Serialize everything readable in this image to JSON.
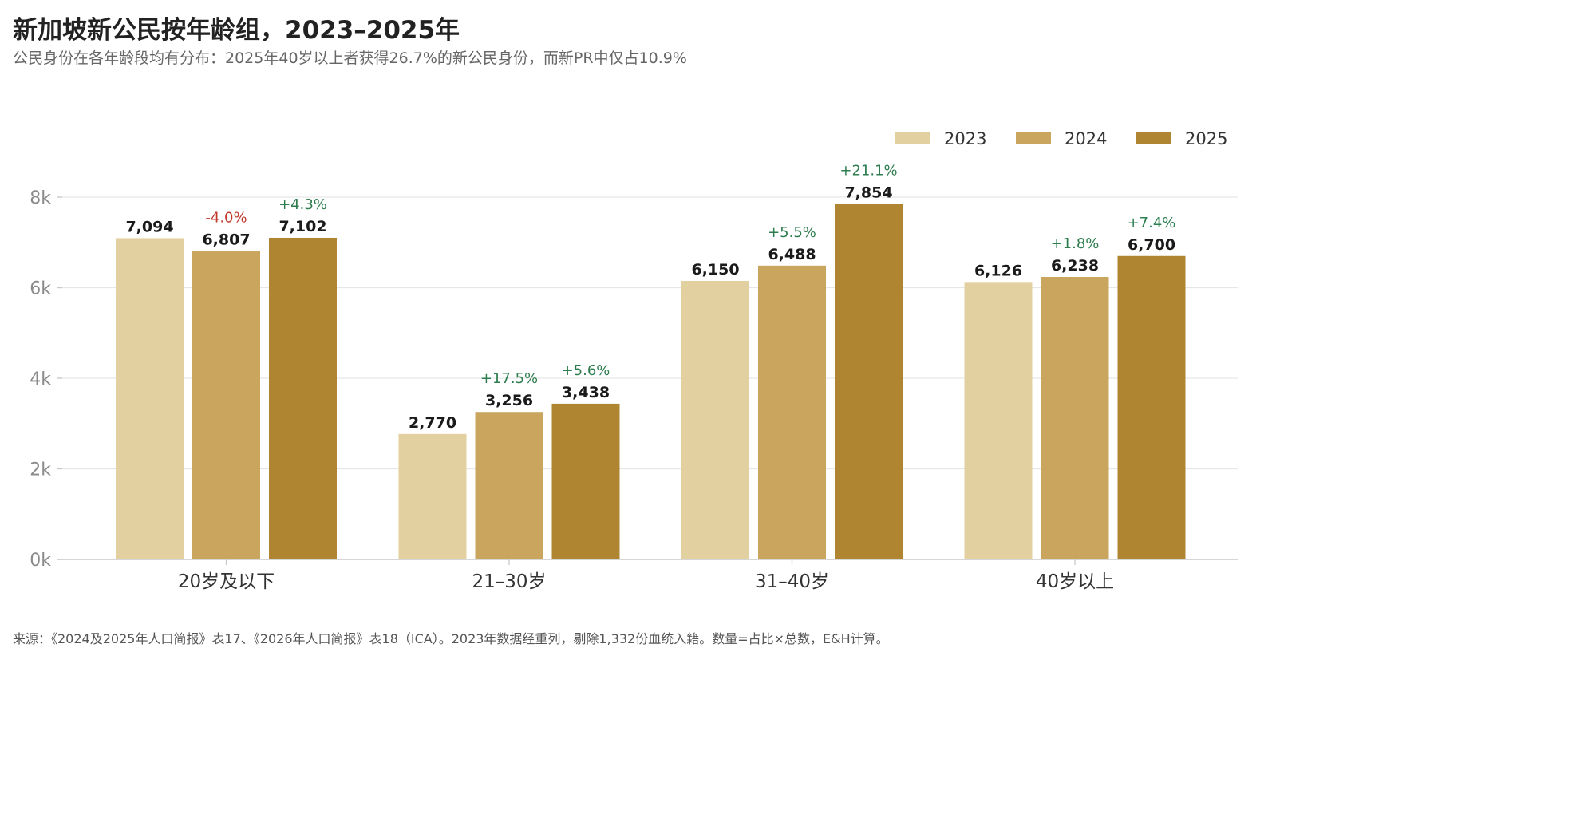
{
  "header": {
    "title": "新加坡新公民按年龄组，2023–2025年",
    "subtitle": "公民身份在各年龄段均有分布：2025年40岁以上者获得26.7%的新公民身份，而新PR中仅占10.9%"
  },
  "footer": {
    "source": "来源：《2024及2025年人口简报》表17、《2026年人口简报》表18（ICA）。2023年数据经重列，剔除1,332份血统入籍。数量=占比×总数，E&H计算。"
  },
  "colors": {
    "series": [
      "#e3d0a1",
      "#c9a55e",
      "#b08531"
    ],
    "positive": "#2e7d4f",
    "negative": "#c0392b",
    "grid": "#e6e6e6",
    "axis": "#c8c8c8"
  },
  "chart_data": {
    "type": "bar",
    "title": "新加坡新公民按年龄组，2023–2025年",
    "subtitle": "公民身份在各年龄段均有分布：2025年40岁以上者获得26.7%的新公民身份，而新PR中仅占10.9%",
    "categories": [
      "20岁及以下",
      "21–30岁",
      "31–40岁",
      "40岁以上"
    ],
    "series": [
      {
        "name": "2023",
        "values": [
          7094,
          2770,
          6150,
          6126
        ],
        "value_labels": [
          "7,094",
          "2,770",
          "6,150",
          "6,126"
        ],
        "change_labels": [
          "",
          "",
          "",
          ""
        ]
      },
      {
        "name": "2024",
        "values": [
          6807,
          3256,
          6488,
          6238
        ],
        "value_labels": [
          "6,807",
          "3,256",
          "6,488",
          "6,238"
        ],
        "change_labels": [
          "-4.0%",
          "+17.5%",
          "+5.5%",
          "+1.8%"
        ]
      },
      {
        "name": "2025",
        "values": [
          7102,
          3438,
          7854,
          6700
        ],
        "value_labels": [
          "7,102",
          "3,438",
          "7,854",
          "6,700"
        ],
        "change_labels": [
          "+4.3%",
          "+5.6%",
          "+21.1%",
          "+7.4%"
        ]
      }
    ],
    "yticks": [
      0,
      2000,
      4000,
      6000,
      8000
    ],
    "ytick_labels": [
      "0k",
      "2k",
      "4k",
      "6k",
      "8k"
    ],
    "ylim": [
      0,
      8000
    ],
    "grid": true,
    "legend_position": "top-right"
  }
}
